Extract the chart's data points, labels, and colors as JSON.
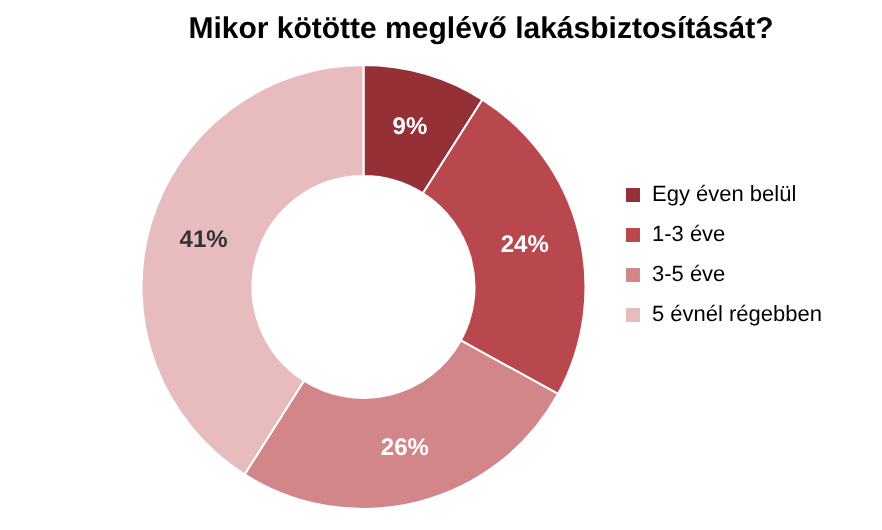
{
  "chart_data": {
    "type": "donut",
    "title": "Mikor kötötte meglévő lakásbiztosítását?",
    "categories": [
      "Egy éven belül",
      "1-3 éve",
      "3-5 éve",
      "5 évnél régebben"
    ],
    "values": [
      9,
      24,
      26,
      41
    ],
    "colors": [
      "#953036",
      "#b9484e",
      "#d3868a",
      "#e8bcbe"
    ],
    "value_labels": [
      "9%",
      "24%",
      "26%",
      "41%"
    ],
    "legend": "right"
  }
}
